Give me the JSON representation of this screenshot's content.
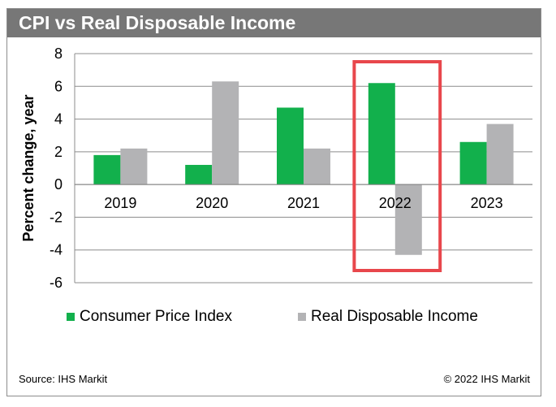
{
  "title": "CPI vs Real Disposable Income",
  "chart_data": {
    "type": "bar",
    "categories": [
      "2019",
      "2020",
      "2021",
      "2022",
      "2023"
    ],
    "series": [
      {
        "name": "Consumer Price Index",
        "color": "#12b04c",
        "values": [
          1.8,
          1.2,
          4.7,
          6.2,
          2.6
        ]
      },
      {
        "name": "Real Disposable Income",
        "color": "#b3b3b5",
        "values": [
          2.2,
          6.3,
          2.2,
          -4.3,
          3.7
        ]
      }
    ],
    "ylabel": "Percent change, year",
    "xlabel": "",
    "ylim": [
      -6,
      8
    ],
    "yticks": [
      "8",
      "6",
      "4",
      "2",
      "0",
      "-2",
      "-4",
      "-6"
    ],
    "grid": true,
    "highlight": {
      "category": "2022",
      "color": "#e8474c"
    },
    "legend": "bottom"
  },
  "footer": {
    "source": "Source: IHS Markit",
    "copyright": "© 2022 IHS Markit"
  }
}
